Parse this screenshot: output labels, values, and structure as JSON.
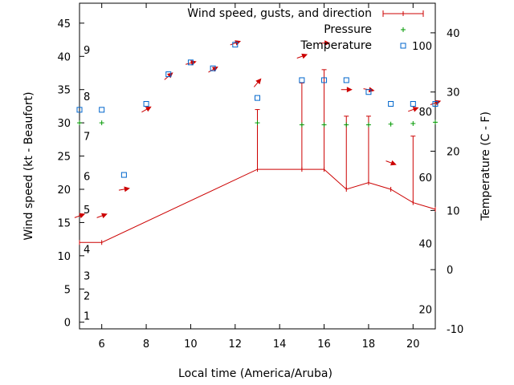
{
  "chart_data": {
    "type": "line",
    "xlabel": "Local time (America/Aruba)",
    "ylabel": "Wind speed (kt - Beaufort)",
    "y2label": "Temperature (C - F)",
    "xlim": [
      5,
      21
    ],
    "ylim": [
      -1,
      48
    ],
    "y2lim": [
      -10,
      45
    ],
    "x_ticks": [
      6,
      8,
      10,
      12,
      14,
      16,
      18,
      20
    ],
    "y_ticks": [
      0,
      5,
      10,
      15,
      20,
      25,
      30,
      35,
      40,
      45
    ],
    "y2_ticks": [
      -10,
      0,
      10,
      20,
      30,
      40
    ],
    "beaufort_labels": [
      {
        "label": "1",
        "y": 1
      },
      {
        "label": "2",
        "y": 4
      },
      {
        "label": "3",
        "y": 7
      },
      {
        "label": "4",
        "y": 11
      },
      {
        "label": "5",
        "y": 17
      },
      {
        "label": "6",
        "y": 22
      },
      {
        "label": "7",
        "y": 28
      },
      {
        "label": "8",
        "y": 34
      },
      {
        "label": "9",
        "y": 41
      }
    ],
    "fahrenheit_labels": [
      {
        "label": "20",
        "t": -6.7
      },
      {
        "label": "40",
        "t": 4.4
      },
      {
        "label": "60",
        "t": 15.6
      },
      {
        "label": "80",
        "t": 26.7
      },
      {
        "label": "100",
        "t": 37.8
      }
    ],
    "legend": {
      "position": "top-right",
      "wind": "Wind speed, gusts, and direction",
      "pressure": "Pressure",
      "temperature": "Temperature"
    },
    "colors": {
      "wind": "#cc0000",
      "pressure": "#009900",
      "temperature": "#0066cc"
    },
    "series": [
      {
        "name": "Wind speed, gusts, and direction",
        "x": [
          5,
          6,
          13,
          15,
          16,
          17,
          18,
          19,
          20,
          21
        ],
        "speed": [
          12,
          12,
          23,
          23,
          23,
          20,
          21,
          20,
          18,
          17
        ],
        "gust": [
          null,
          null,
          32,
          36,
          38,
          31,
          31,
          null,
          28,
          null
        ]
      },
      {
        "name": "Temperature",
        "x": [
          5,
          6,
          7,
          8,
          9,
          10,
          11,
          12,
          13,
          15,
          16,
          17,
          18,
          19,
          20,
          21
        ],
        "y2": [
          27,
          27,
          16,
          28,
          33,
          35,
          34,
          38,
          29,
          32,
          32,
          32,
          30,
          28,
          28,
          28
        ]
      },
      {
        "name": "Pressure",
        "x": [
          5,
          6,
          13,
          15,
          16,
          17,
          18,
          19,
          20,
          21
        ],
        "y": [
          30,
          30,
          30,
          29.7,
          29.7,
          29.7,
          29.7,
          29.8,
          29.9,
          30.1
        ]
      }
    ],
    "wind_arrows": [
      {
        "x": 5,
        "y": 16,
        "angle": 200
      },
      {
        "x": 6,
        "y": 16,
        "angle": 200
      },
      {
        "x": 7,
        "y": 20,
        "angle": 190
      },
      {
        "x": 8,
        "y": 32,
        "angle": 210
      },
      {
        "x": 9,
        "y": 37,
        "angle": 220
      },
      {
        "x": 10,
        "y": 39,
        "angle": 195
      },
      {
        "x": 11,
        "y": 38,
        "angle": 210
      },
      {
        "x": 12,
        "y": 42,
        "angle": 200
      },
      {
        "x": 13,
        "y": 36,
        "angle": 230
      },
      {
        "x": 15,
        "y": 40,
        "angle": 200
      },
      {
        "x": 16,
        "y": 42,
        "angle": 180
      },
      {
        "x": 17,
        "y": 35,
        "angle": 180
      },
      {
        "x": 18,
        "y": 35,
        "angle": 170
      },
      {
        "x": 19,
        "y": 24,
        "angle": 160
      },
      {
        "x": 20,
        "y": 32,
        "angle": 200
      },
      {
        "x": 21,
        "y": 33,
        "angle": 200
      }
    ]
  }
}
